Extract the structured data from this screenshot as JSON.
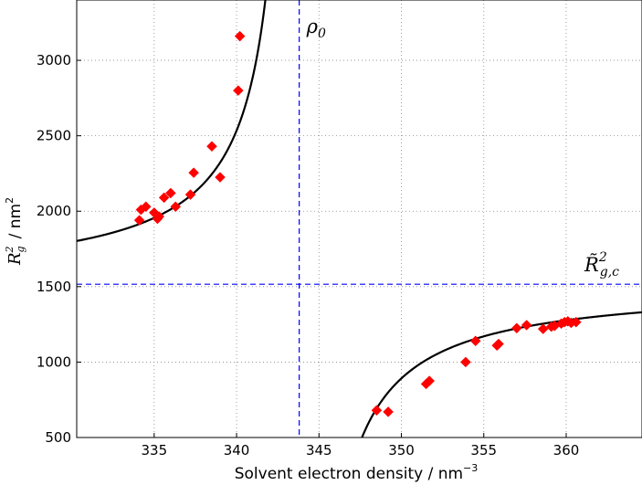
{
  "chart_data": {
    "type": "scatter",
    "xlabel": "Solvent electron density / nm",
    "xlabel_exponent": "−3",
    "ylabel": "R",
    "ylabel_subscript": "g",
    "ylabel_superscript": "2",
    "ylabel_unit": "/ nm",
    "ylabel_unit_exponent": "2",
    "xlim": [
      330.3,
      364.6
    ],
    "ylim": [
      500,
      3400
    ],
    "x_ticks": [
      335,
      340,
      345,
      350,
      355,
      360
    ],
    "y_ticks": [
      500,
      1000,
      1500,
      2000,
      2500,
      3000
    ],
    "grid": true,
    "colors": {
      "points": "#ff0000",
      "fit": "#000000",
      "reference": "#0000ff",
      "grid": "#888888"
    },
    "points": [
      {
        "x": 334.1,
        "y": 1940
      },
      {
        "x": 334.2,
        "y": 2010
      },
      {
        "x": 334.5,
        "y": 2030
      },
      {
        "x": 335.0,
        "y": 1990
      },
      {
        "x": 335.2,
        "y": 1950
      },
      {
        "x": 335.3,
        "y": 1965
      },
      {
        "x": 335.6,
        "y": 2090
      },
      {
        "x": 336.0,
        "y": 2120
      },
      {
        "x": 336.3,
        "y": 2030
      },
      {
        "x": 337.2,
        "y": 2110
      },
      {
        "x": 337.4,
        "y": 2255
      },
      {
        "x": 338.5,
        "y": 2430
      },
      {
        "x": 339.0,
        "y": 2225
      },
      {
        "x": 340.1,
        "y": 2800
      },
      {
        "x": 340.2,
        "y": 3160
      },
      {
        "x": 348.5,
        "y": 680
      },
      {
        "x": 349.2,
        "y": 670
      },
      {
        "x": 351.5,
        "y": 855
      },
      {
        "x": 351.7,
        "y": 875
      },
      {
        "x": 353.9,
        "y": 1000
      },
      {
        "x": 354.5,
        "y": 1140
      },
      {
        "x": 355.8,
        "y": 1110
      },
      {
        "x": 355.9,
        "y": 1120
      },
      {
        "x": 357.0,
        "y": 1225
      },
      {
        "x": 357.6,
        "y": 1245
      },
      {
        "x": 358.6,
        "y": 1220
      },
      {
        "x": 359.1,
        "y": 1235
      },
      {
        "x": 359.3,
        "y": 1240
      },
      {
        "x": 359.7,
        "y": 1255
      },
      {
        "x": 359.9,
        "y": 1265
      },
      {
        "x": 360.1,
        "y": 1270
      },
      {
        "x": 360.3,
        "y": 1260
      },
      {
        "x": 360.6,
        "y": 1265
      }
    ],
    "fit": {
      "rho0": 343.8,
      "asymptote": 1516,
      "coefficient": -3870
    },
    "annotations": [
      {
        "text": "ρ",
        "sub": "0"
      },
      {
        "text": "R̃",
        "sup": "2",
        "sub": "g,c"
      }
    ]
  }
}
